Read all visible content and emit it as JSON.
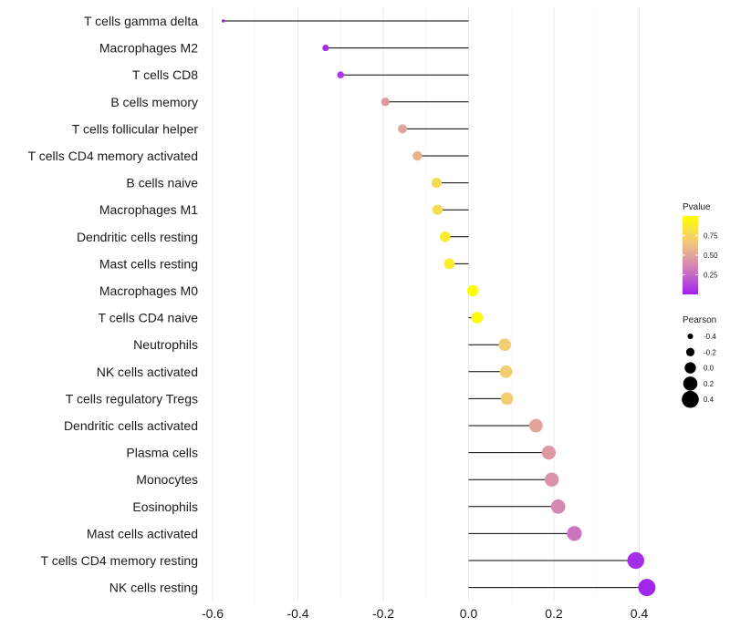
{
  "chart_data": {
    "type": "lollipop",
    "title": "",
    "xlabel": "",
    "ylabel": "",
    "xlim": [
      -0.62,
      0.45
    ],
    "x_ticks": [
      -0.6,
      -0.4,
      -0.2,
      0.0,
      0.2,
      0.4
    ],
    "x_tick_labels": [
      "-0.6",
      "-0.4",
      "-0.2",
      "0.0",
      "0.2",
      "0.4"
    ],
    "grid": "vertical",
    "categories": [
      "T cells gamma delta",
      "Macrophages M2",
      "T cells CD8",
      "B cells memory",
      "T cells follicular helper",
      "T cells CD4 memory activated",
      "B cells naive",
      "Macrophages M1",
      "Dendritic cells resting",
      "Mast cells resting",
      "Macrophages M0",
      "T cells CD4 naive",
      "Neutrophils",
      "NK cells activated",
      "T cells regulatory  Tregs ",
      "Dendritic cells activated",
      "Plasma cells",
      "Monocytes",
      "Eosinophils",
      "Mast cells activated",
      "T cells CD4 memory resting",
      "NK cells resting"
    ],
    "pearson": [
      -0.575,
      -0.335,
      -0.3,
      -0.195,
      -0.155,
      -0.12,
      -0.075,
      -0.073,
      -0.055,
      -0.045,
      0.01,
      0.02,
      0.085,
      0.088,
      0.09,
      0.158,
      0.188,
      0.195,
      0.21,
      0.248,
      0.392,
      0.418
    ],
    "pvalue": [
      0.0,
      0.05,
      0.08,
      0.45,
      0.5,
      0.58,
      0.78,
      0.78,
      0.88,
      0.9,
      1.0,
      0.97,
      0.7,
      0.7,
      0.7,
      0.5,
      0.45,
      0.42,
      0.38,
      0.3,
      0.05,
      0.02
    ],
    "legend_pvalue": {
      "title": "Pvalue",
      "ticks": [
        0.25,
        0.5,
        0.75
      ],
      "tick_labels": [
        "0.25",
        "0.50",
        "0.75"
      ],
      "range": [
        0,
        1
      ],
      "colors": [
        "#a020f0",
        "#d17fb8",
        "#f2c77d",
        "#ffff00"
      ]
    },
    "legend_pearson": {
      "title": "Pearson",
      "values": [
        -0.4,
        -0.2,
        0.0,
        0.2,
        0.4
      ],
      "labels": [
        "-0.4",
        "-0.2",
        "0.0",
        "0.2",
        "0.4"
      ]
    },
    "legend_position": "right"
  }
}
